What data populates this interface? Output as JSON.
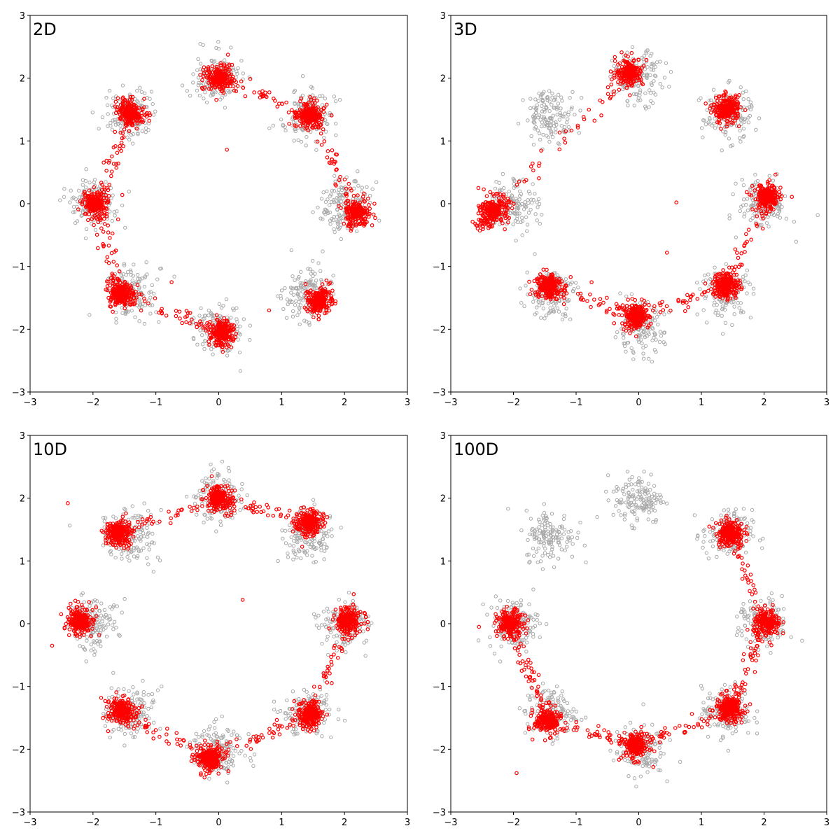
{
  "chart_data": {
    "type": "scatter",
    "layout": "2x2 grid",
    "xlim": [
      -3,
      3
    ],
    "ylim": [
      -3,
      3
    ],
    "ticks": [
      -3,
      -2,
      -1,
      0,
      1,
      2,
      3
    ],
    "tick_labels": [
      "−3",
      "−2",
      "−1",
      "0",
      "1",
      "2",
      "3"
    ],
    "grid": false,
    "reference_color": "#a9a9a9",
    "sample_color": "#ff0000",
    "reference": {
      "description": "8 Gaussian modes on a circle of radius 2 (same in every panel)",
      "modes": [
        [
          2,
          0
        ],
        [
          1.41,
          1.41
        ],
        [
          0,
          2
        ],
        [
          -1.41,
          1.41
        ],
        [
          -2,
          0
        ],
        [
          -1.41,
          -1.41
        ],
        [
          0,
          -2
        ],
        [
          1.41,
          -1.41
        ]
      ],
      "std": 0.2
    },
    "panels": [
      {
        "label": "2D",
        "samples": {
          "clusters": [
            [
              0,
              2
            ],
            [
              1.45,
              1.4
            ],
            [
              2.2,
              -0.15
            ],
            [
              1.6,
              -1.55
            ],
            [
              0.05,
              -2.05
            ],
            [
              -1.55,
              -1.45
            ],
            [
              -1.95,
              0
            ],
            [
              -1.4,
              1.45
            ]
          ],
          "bridges": [
            [
              [
                0,
                2
              ],
              [
                1.45,
                1.4
              ]
            ],
            [
              [
                -1.4,
                1.45
              ],
              [
                -1.95,
                0
              ]
            ],
            [
              [
                -1.55,
                -1.45
              ],
              [
                0.05,
                -2.05
              ]
            ],
            [
              [
                1.45,
                1.4
              ],
              [
                2.2,
                -0.15
              ]
            ],
            [
              [
                -1.95,
                0
              ],
              [
                -1.55,
                -1.45
              ]
            ]
          ],
          "outliers": [
            [
              0.13,
              0.86
            ],
            [
              -0.75,
              -1.25
            ],
            [
              0.8,
              -1.7
            ]
          ]
        }
      },
      {
        "label": "3D",
        "samples": {
          "clusters": [
            [
              -0.15,
              2.1
            ],
            [
              1.4,
              1.5
            ],
            [
              2.05,
              0.1
            ],
            [
              1.4,
              -1.3
            ],
            [
              -0.05,
              -1.8
            ],
            [
              -1.45,
              -1.3
            ],
            [
              -2.3,
              -0.1
            ]
          ],
          "bridges": [
            [
              [
                -2.3,
                -0.1
              ],
              [
                -0.15,
                2.1
              ]
            ],
            [
              [
                -1.45,
                -1.3
              ],
              [
                -0.05,
                -1.8
              ]
            ],
            [
              [
                -0.05,
                -1.8
              ],
              [
                1.4,
                -1.3
              ]
            ],
            [
              [
                1.4,
                -1.3
              ],
              [
                2.05,
                0.1
              ]
            ],
            [
              [
                -2.55,
                -0.4
              ],
              [
                -2.3,
                -0.1
              ]
            ]
          ],
          "outliers": [
            [
              0.6,
              0.02
            ],
            [
              0.45,
              -0.78
            ]
          ]
        }
      },
      {
        "label": "10D",
        "samples": {
          "clusters": [
            [
              2.05,
              0.05
            ],
            [
              1.45,
              1.6
            ],
            [
              0,
              2.0
            ],
            [
              -1.6,
              1.45
            ],
            [
              -2.2,
              0.05
            ],
            [
              -1.55,
              -1.4
            ],
            [
              -0.15,
              -2.15
            ],
            [
              1.45,
              -1.45
            ]
          ],
          "bridges": [
            [
              [
                -1.6,
                1.45
              ],
              [
                0,
                2.0
              ]
            ],
            [
              [
                0,
                2.0
              ],
              [
                1.45,
                1.6
              ]
            ],
            [
              [
                -0.15,
                -2.15
              ],
              [
                1.45,
                -1.45
              ]
            ],
            [
              [
                1.45,
                -1.45
              ],
              [
                2.05,
                0.05
              ]
            ],
            [
              [
                -1.55,
                -1.4
              ],
              [
                -0.15,
                -2.15
              ]
            ]
          ],
          "outliers": [
            [
              0.38,
              0.38
            ],
            [
              -2.4,
              1.92
            ],
            [
              -2.65,
              -0.35
            ]
          ]
        }
      },
      {
        "label": "100D",
        "samples": {
          "clusters": [
            [
              1.45,
              1.45
            ],
            [
              2.05,
              0
            ],
            [
              1.45,
              -1.35
            ],
            [
              -0.05,
              -1.95
            ],
            [
              -1.45,
              -1.55
            ],
            [
              -2.05,
              0
            ]
          ],
          "bridges": [
            [
              [
                1.45,
                1.45
              ],
              [
                2.05,
                0
              ]
            ],
            [
              [
                2.05,
                0
              ],
              [
                1.45,
                -1.35
              ]
            ],
            [
              [
                1.45,
                -1.35
              ],
              [
                -0.05,
                -1.95
              ]
            ],
            [
              [
                -0.05,
                -1.95
              ],
              [
                -1.45,
                -1.55
              ]
            ],
            [
              [
                -1.45,
                -1.55
              ],
              [
                -2.05,
                0
              ]
            ]
          ],
          "outliers": [
            [
              -1.95,
              -2.38
            ],
            [
              -2.55,
              -0.05
            ]
          ]
        }
      }
    ]
  }
}
